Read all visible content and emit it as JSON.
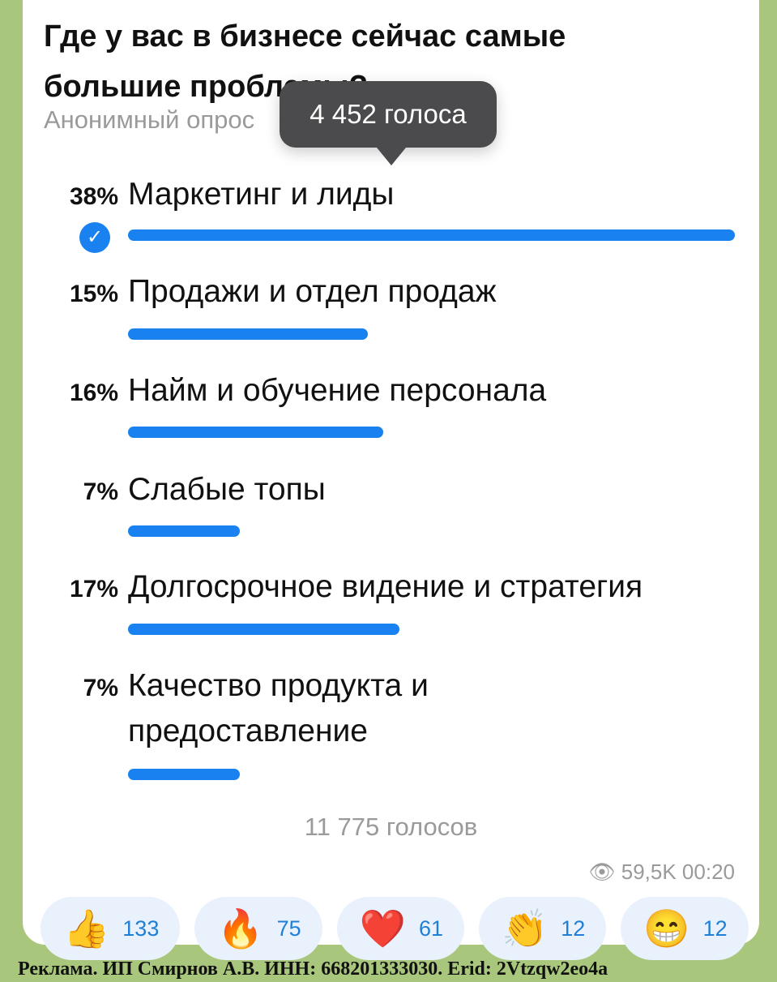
{
  "poll": {
    "question": "Где у вас в бизнесе сейчас самые большие проблемы?",
    "type": "Анонимный опрос",
    "tooltip": "4 452 голоса",
    "options": [
      {
        "pct": "38%",
        "value": 38,
        "label": "Маркетинг и лиды",
        "voted": true
      },
      {
        "pct": "15%",
        "value": 15,
        "label": "Продажи и отдел продаж"
      },
      {
        "pct": "16%",
        "value": 16,
        "label": "Найм и обучение персонала"
      },
      {
        "pct": "7%",
        "value": 7,
        "label": "Слабые топы"
      },
      {
        "pct": "17%",
        "value": 17,
        "label": "Долгосрочное видение и стратегия"
      },
      {
        "pct": "7%",
        "value": 7,
        "label": "Качество продукта и предоставление"
      }
    ],
    "total": "11 775 голосов"
  },
  "meta": {
    "views": "59,5K",
    "time": "00:20",
    "views_icon": "eye-icon"
  },
  "reactions": [
    {
      "emoji": "👍",
      "count": "133"
    },
    {
      "emoji": "🔥",
      "count": "75"
    },
    {
      "emoji": "❤️",
      "count": "61"
    },
    {
      "emoji": "👏",
      "count": "12"
    },
    {
      "emoji": "😁",
      "count": "12"
    }
  ],
  "ad": "Реклама. ИП Смирнов А.В. ИНН: 668201333030. Erid: 2Vtzqw2eo4a",
  "colors": {
    "accent": "#1a82f0",
    "background": "#a9c77c"
  }
}
